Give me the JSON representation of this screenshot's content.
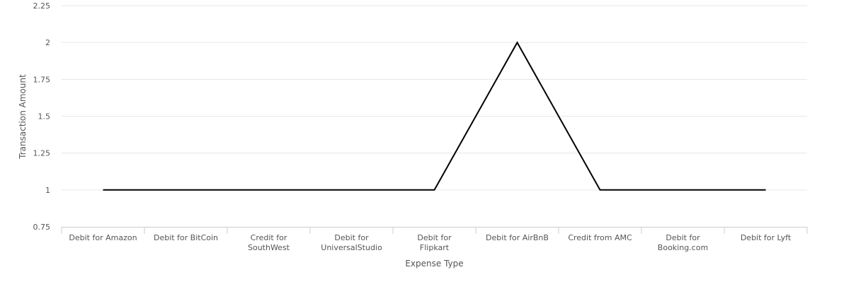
{
  "chart_data": {
    "type": "line",
    "categories": [
      "Debit for Amazon",
      "Debit for BitCoin",
      "Credit for SouthWest",
      "Debit for UniversalStudio",
      "Debit for Flipkart",
      "Debit for AirBnB",
      "Credit from AMC",
      "Debit for Booking.com",
      "Debit for Lyft"
    ],
    "series": [
      {
        "values": [
          1,
          1,
          1,
          1,
          1,
          2,
          1,
          1,
          1
        ],
        "color": "#000000"
      }
    ],
    "xlabel": "Expense Type",
    "ylabel": "Transaction Amount",
    "ylim": [
      0.75,
      2.25
    ],
    "yticks": [
      "0.75",
      "1",
      "1.25",
      "1.5",
      "1.75",
      "2",
      "2.25"
    ],
    "grid": true,
    "legend": "none"
  }
}
